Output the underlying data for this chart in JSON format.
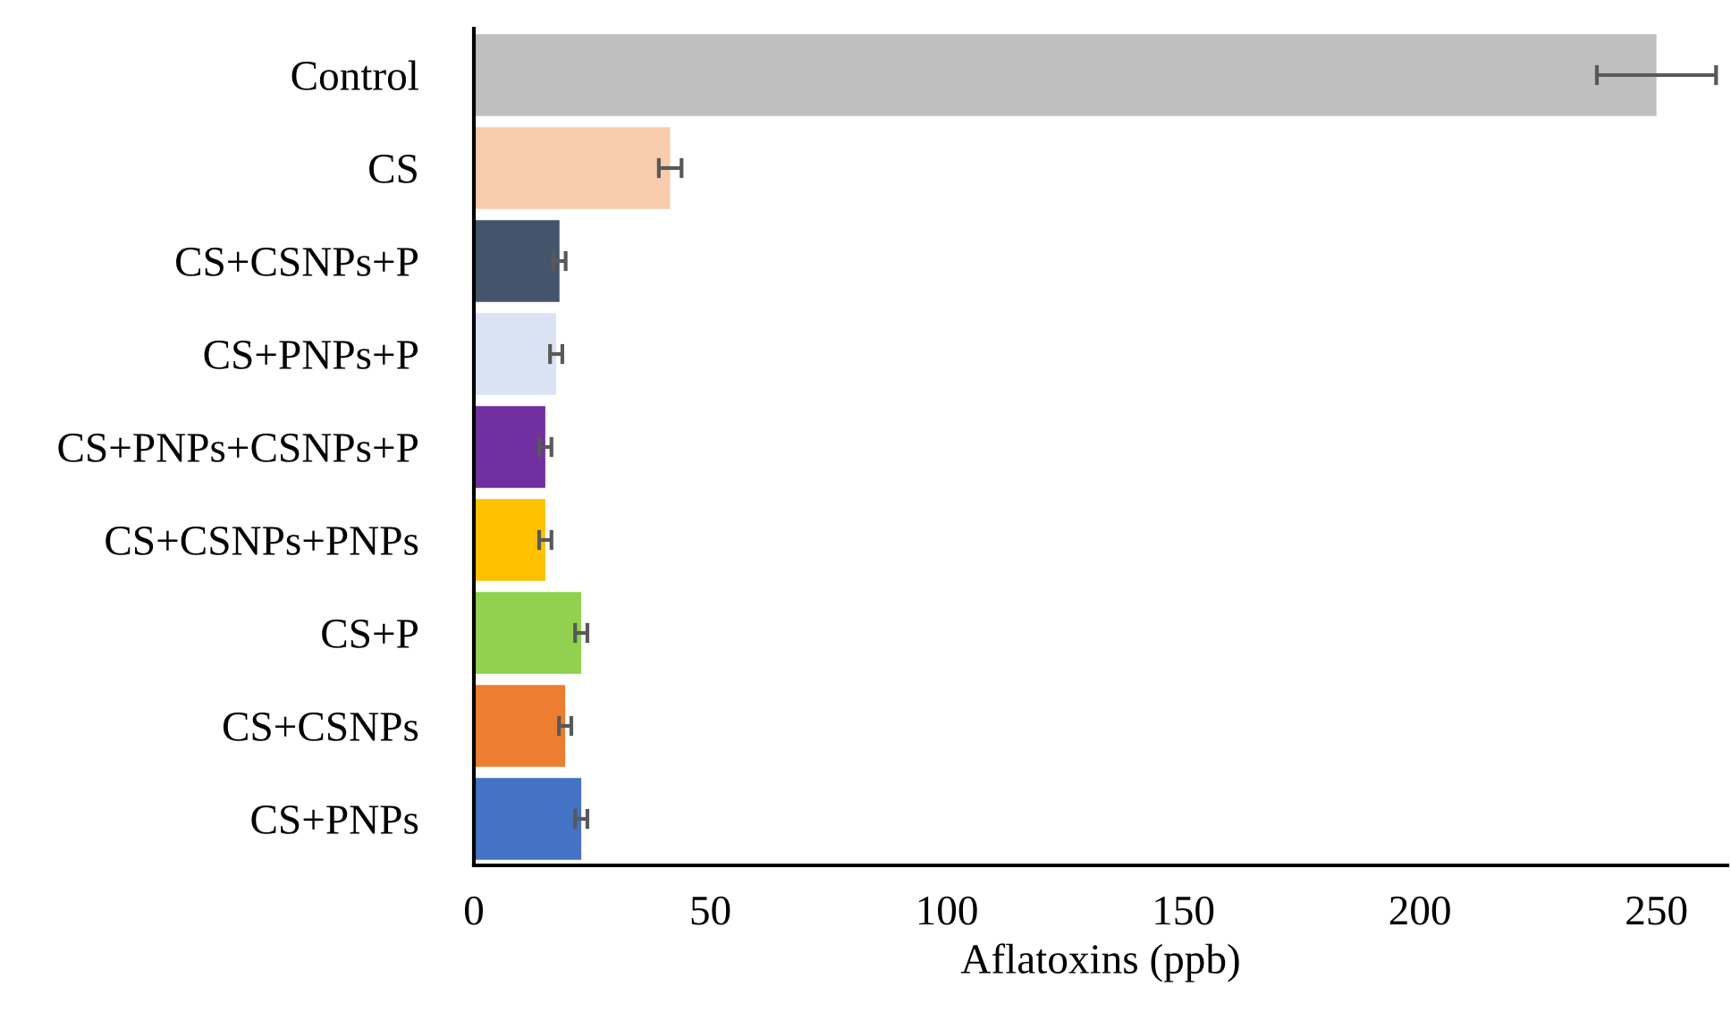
{
  "chart_data": {
    "type": "bar",
    "orientation": "horizontal",
    "xlabel": "Aflatoxins (ppb)",
    "categories": [
      "Control",
      "CS",
      "CS+CSNPs+P",
      "CS+PNPs+P",
      "CS+PNPs+CSNPs+P",
      "CS+CSNPs+PNPs",
      "CS+P",
      "CS+CSNPs",
      "CS+PNPs"
    ],
    "values": [
      250,
      41.5,
      18.1,
      17.4,
      15.1,
      15.1,
      22.7,
      19.3,
      22.7
    ],
    "errors": [
      12.6,
      2.4,
      1.3,
      1.3,
      1.3,
      1.3,
      1.3,
      1.3,
      1.3
    ],
    "colors": [
      "#bfbfbf",
      "#f8cbad",
      "#44546a",
      "#dae3f3",
      "#7030a0",
      "#ffc000",
      "#92d050",
      "#ed7d31",
      "#4472c4"
    ],
    "xlim": [
      0,
      265
    ],
    "xticks": [
      0,
      50,
      100,
      150,
      200,
      250
    ],
    "grid": false,
    "legend": false
  }
}
